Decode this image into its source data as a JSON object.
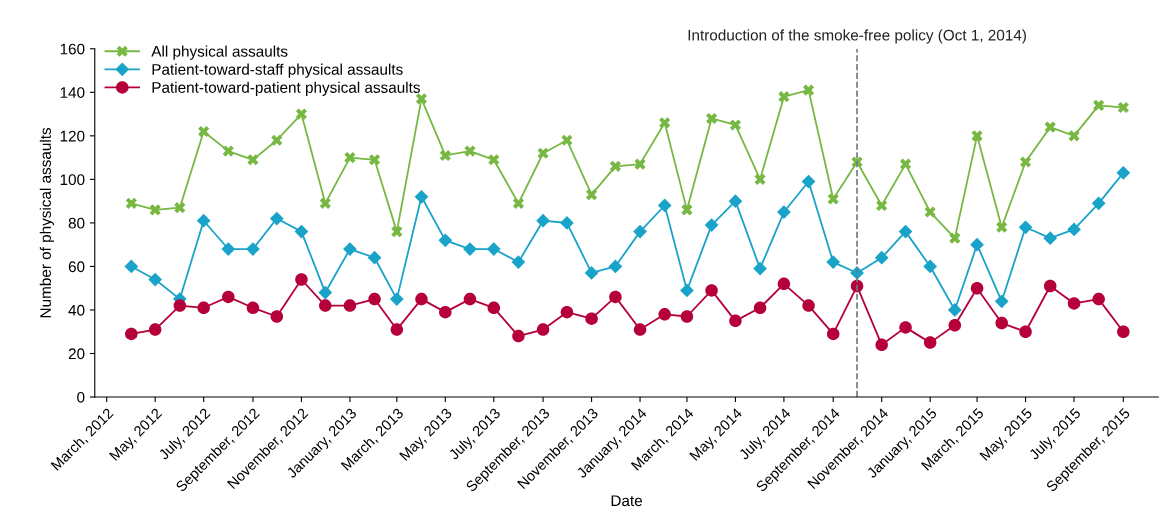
{
  "chart_data": {
    "type": "line",
    "xlabel": "Date",
    "ylabel": "Number of physical assaults",
    "x": [
      "2012-04",
      "2012-05",
      "2012-06",
      "2012-07",
      "2012-08",
      "2012-09",
      "2012-10",
      "2012-11",
      "2012-12",
      "2013-01",
      "2013-02",
      "2013-03",
      "2013-04",
      "2013-05",
      "2013-06",
      "2013-07",
      "2013-08",
      "2013-09",
      "2013-10",
      "2013-11",
      "2013-12",
      "2014-01",
      "2014-02",
      "2014-03",
      "2014-04",
      "2014-05",
      "2014-06",
      "2014-07",
      "2014-08",
      "2014-09",
      "2014-10",
      "2014-11",
      "2014-12",
      "2015-01",
      "2015-02",
      "2015-03",
      "2015-04",
      "2015-05",
      "2015-06",
      "2015-07",
      "2015-08",
      "2015-09"
    ],
    "series": [
      {
        "name": "All physical assaults",
        "color": "#77b843",
        "marker": "cross",
        "values": [
          89,
          86,
          87,
          122,
          113,
          109,
          118,
          130,
          89,
          110,
          109,
          76,
          137,
          111,
          113,
          109,
          89,
          112,
          118,
          93,
          106,
          107,
          126,
          86,
          128,
          125,
          100,
          138,
          141,
          91,
          108,
          88,
          107,
          85,
          73,
          120,
          78,
          108,
          124,
          120,
          134,
          133
        ]
      },
      {
        "name": "Patient-toward-staff physical assaults",
        "color": "#1aa3c8",
        "marker": "diamond",
        "values": [
          60,
          54,
          45,
          81,
          68,
          68,
          82,
          76,
          48,
          68,
          64,
          45,
          92,
          72,
          68,
          68,
          62,
          81,
          80,
          57,
          60,
          76,
          88,
          49,
          79,
          90,
          59,
          85,
          99,
          62,
          57,
          64,
          76,
          60,
          40,
          70,
          44,
          78,
          73,
          77,
          89,
          103
        ]
      },
      {
        "name": "Patient-toward-patient physical assaults",
        "color": "#b5003a",
        "marker": "circle",
        "values": [
          29,
          31,
          42,
          41,
          46,
          41,
          37,
          54,
          42,
          42,
          45,
          31,
          45,
          39,
          45,
          41,
          28,
          31,
          39,
          36,
          46,
          31,
          38,
          37,
          49,
          35,
          41,
          52,
          42,
          29,
          51,
          24,
          32,
          25,
          33,
          50,
          34,
          30,
          51,
          43,
          45,
          30
        ]
      }
    ],
    "xlim": [
      "2012-02-15",
      "2015-10-15"
    ],
    "xticks": [
      {
        "value": "2012-03",
        "label": "March, 2012"
      },
      {
        "value": "2012-05",
        "label": "May, 2012"
      },
      {
        "value": "2012-07",
        "label": "July, 2012"
      },
      {
        "value": "2012-09",
        "label": "September, 2012"
      },
      {
        "value": "2012-11",
        "label": "November, 2012"
      },
      {
        "value": "2013-01",
        "label": "January, 2013"
      },
      {
        "value": "2013-03",
        "label": "March, 2013"
      },
      {
        "value": "2013-05",
        "label": "May, 2013"
      },
      {
        "value": "2013-07",
        "label": "July, 2013"
      },
      {
        "value": "2013-09",
        "label": "September, 2013"
      },
      {
        "value": "2013-11",
        "label": "November, 2013"
      },
      {
        "value": "2014-01",
        "label": "January, 2014"
      },
      {
        "value": "2014-03",
        "label": "March, 2014"
      },
      {
        "value": "2014-05",
        "label": "May, 2014"
      },
      {
        "value": "2014-07",
        "label": "July, 2014"
      },
      {
        "value": "2014-09",
        "label": "September, 2014"
      },
      {
        "value": "2014-11",
        "label": "November, 2014"
      },
      {
        "value": "2015-01",
        "label": "January, 2015"
      },
      {
        "value": "2015-03",
        "label": "March, 2015"
      },
      {
        "value": "2015-05",
        "label": "May, 2015"
      },
      {
        "value": "2015-07",
        "label": "July, 2015"
      },
      {
        "value": "2015-09",
        "label": "September, 2015"
      }
    ],
    "ylim": [
      0,
      160
    ],
    "yticks": [
      0,
      20,
      40,
      60,
      80,
      100,
      120,
      140,
      160
    ],
    "ref_lines": [
      {
        "axis": "x",
        "value": "2014-10-01",
        "label": "Introduction of the smoke-free policy (Oct 1, 2014)",
        "color": "#6b7b8a",
        "line_style": "dashed"
      }
    ],
    "grid": false,
    "legend": "top left",
    "line_style": "solid"
  }
}
